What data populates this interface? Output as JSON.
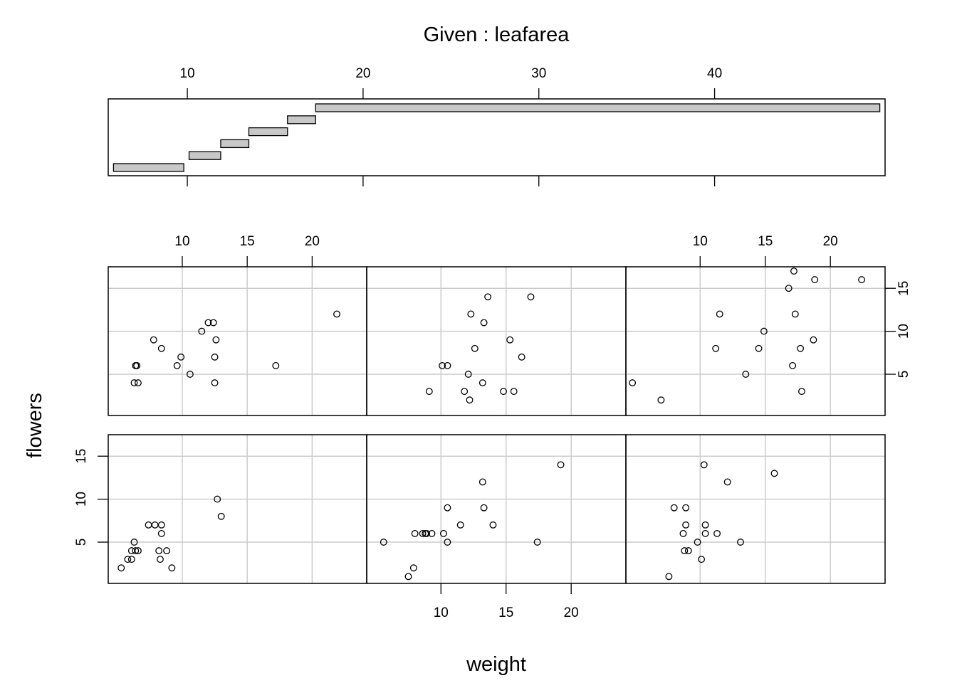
{
  "chart_data": {
    "type": "scatter",
    "kind": "coplot",
    "title": "Given : leafarea",
    "xlabel": "weight",
    "ylabel": "flowers",
    "given": {
      "variable": "leafarea",
      "axis_range": [
        5.5,
        49.7
      ],
      "ticks": [
        10,
        20,
        30,
        40
      ],
      "intervals": [
        [
          5.8,
          9.8
        ],
        [
          10.1,
          11.9
        ],
        [
          11.9,
          13.5
        ],
        [
          13.5,
          15.7
        ],
        [
          15.7,
          17.3
        ],
        [
          17.3,
          49.4
        ]
      ]
    },
    "x_range": [
      4.3,
      24.2
    ],
    "y_range": [
      0.2,
      17.5
    ],
    "x_ticks": [
      10,
      15,
      20
    ],
    "y_ticks": [
      5,
      10,
      15
    ],
    "panels": [
      {
        "interval": 1,
        "points": [
          [
            5.3,
            2
          ],
          [
            5.8,
            3
          ],
          [
            6.1,
            3
          ],
          [
            6.1,
            4
          ],
          [
            6.3,
            5
          ],
          [
            6.4,
            4
          ],
          [
            6.6,
            4
          ],
          [
            7.4,
            7
          ],
          [
            7.9,
            7
          ],
          [
            8.2,
            4
          ],
          [
            8.3,
            3
          ],
          [
            8.4,
            6
          ],
          [
            8.4,
            7
          ],
          [
            8.8,
            4
          ],
          [
            9.2,
            2
          ],
          [
            12.7,
            10
          ],
          [
            13.0,
            8
          ]
        ]
      },
      {
        "interval": 2,
        "points": [
          [
            5.6,
            5
          ],
          [
            7.5,
            1
          ],
          [
            7.9,
            2
          ],
          [
            8.0,
            6
          ],
          [
            8.6,
            6
          ],
          [
            8.8,
            6
          ],
          [
            8.9,
            6
          ],
          [
            9.3,
            6
          ],
          [
            10.2,
            6
          ],
          [
            10.5,
            5
          ],
          [
            10.5,
            9
          ],
          [
            11.5,
            7
          ],
          [
            13.2,
            12
          ],
          [
            13.3,
            9
          ],
          [
            14.0,
            7
          ],
          [
            17.4,
            5
          ],
          [
            19.2,
            14
          ]
        ]
      },
      {
        "interval": 3,
        "points": [
          [
            7.6,
            1
          ],
          [
            8.0,
            9
          ],
          [
            8.7,
            6
          ],
          [
            8.8,
            4
          ],
          [
            8.9,
            9
          ],
          [
            8.9,
            7
          ],
          [
            9.1,
            4
          ],
          [
            9.8,
            5
          ],
          [
            10.1,
            3
          ],
          [
            10.3,
            14
          ],
          [
            10.4,
            7
          ],
          [
            10.4,
            6
          ],
          [
            11.3,
            6
          ],
          [
            12.1,
            12
          ],
          [
            13.1,
            5
          ],
          [
            15.7,
            13
          ]
        ]
      },
      {
        "interval": 4,
        "points": [
          [
            6.3,
            4
          ],
          [
            6.4,
            6
          ],
          [
            6.5,
            6
          ],
          [
            6.5,
            6
          ],
          [
            6.6,
            4
          ],
          [
            7.8,
            9
          ],
          [
            8.4,
            8
          ],
          [
            9.6,
            6
          ],
          [
            9.9,
            7
          ],
          [
            10.6,
            5
          ],
          [
            11.5,
            10
          ],
          [
            12.0,
            11
          ],
          [
            12.4,
            11
          ],
          [
            12.5,
            4
          ],
          [
            12.5,
            7
          ],
          [
            12.6,
            9
          ],
          [
            17.2,
            6
          ],
          [
            21.9,
            12
          ]
        ]
      },
      {
        "interval": 5,
        "points": [
          [
            9.1,
            3
          ],
          [
            10.1,
            6
          ],
          [
            10.5,
            6
          ],
          [
            11.8,
            3
          ],
          [
            12.1,
            5
          ],
          [
            12.2,
            2
          ],
          [
            12.3,
            12
          ],
          [
            12.6,
            8
          ],
          [
            13.2,
            4
          ],
          [
            13.3,
            11
          ],
          [
            13.6,
            14
          ],
          [
            14.8,
            3
          ],
          [
            15.3,
            9
          ],
          [
            15.6,
            3
          ],
          [
            16.2,
            7
          ],
          [
            16.9,
            14
          ]
        ]
      },
      {
        "interval": 6,
        "points": [
          [
            4.8,
            4
          ],
          [
            7.0,
            2
          ],
          [
            11.2,
            8
          ],
          [
            11.5,
            12
          ],
          [
            13.5,
            5
          ],
          [
            14.5,
            8
          ],
          [
            14.9,
            10
          ],
          [
            16.8,
            15
          ],
          [
            17.1,
            6
          ],
          [
            17.2,
            17
          ],
          [
            17.3,
            12
          ],
          [
            17.7,
            8
          ],
          [
            17.8,
            3
          ],
          [
            18.7,
            9
          ],
          [
            18.8,
            16
          ],
          [
            22.4,
            16
          ]
        ]
      }
    ]
  }
}
